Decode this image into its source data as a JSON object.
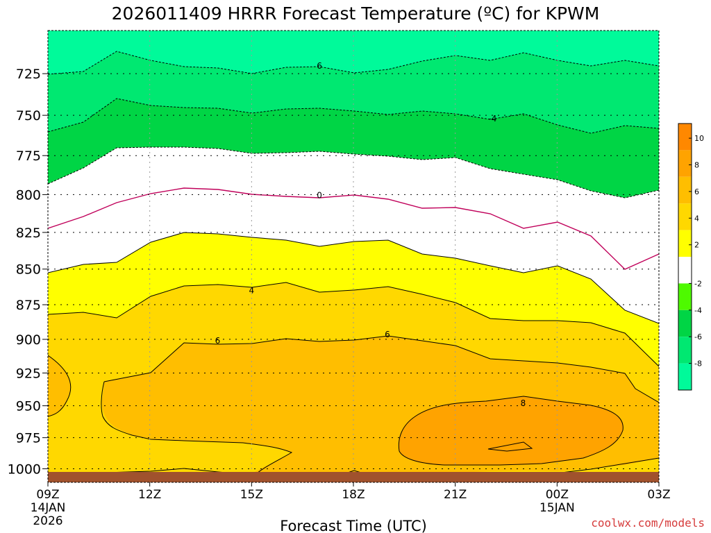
{
  "chart_data": {
    "type": "contour",
    "title": "2026011409 HRRR Forecast Temperature (ºC) for KPWM",
    "xlabel": "Forecast Time (UTC)",
    "credit": "coolwx.com/models",
    "x_ticks": [
      {
        "hour": 0,
        "label": "09Z",
        "sub1": "14JAN",
        "sub2": "2026"
      },
      {
        "hour": 3,
        "label": "12Z"
      },
      {
        "hour": 6,
        "label": "15Z"
      },
      {
        "hour": 9,
        "label": "18Z"
      },
      {
        "hour": 12,
        "label": "21Z"
      },
      {
        "hour": 15,
        "label": "00Z",
        "sub1": "15JAN"
      },
      {
        "hour": 18,
        "label": "03Z"
      }
    ],
    "y_ticks": [
      {
        "value": 725,
        "label": "725"
      },
      {
        "value": 750,
        "label": "750"
      },
      {
        "value": 775,
        "label": "775"
      },
      {
        "value": 800,
        "label": "800"
      },
      {
        "value": 825,
        "label": "825"
      },
      {
        "value": 850,
        "label": "850"
      },
      {
        "value": 875,
        "label": "875"
      },
      {
        "value": 900,
        "label": "900"
      },
      {
        "value": 925,
        "label": "925"
      },
      {
        "value": 950,
        "label": "950"
      },
      {
        "value": 975,
        "label": "975"
      },
      {
        "value": 1000,
        "label": "1000"
      }
    ],
    "xlim": [
      0,
      18
    ],
    "ylim_hpa": [
      700,
      1000
    ],
    "levels": [
      {
        "name": "-8",
        "color": "#00fa9a",
        "dashed": true
      },
      {
        "name": "-6",
        "color": "#00e871",
        "dashed": true
      },
      {
        "name": "-4",
        "color": "#00d545",
        "dashed": true
      },
      {
        "name": "-2",
        "color": "#4efa00",
        "dashed": true
      },
      {
        "name": "0",
        "color": "#ffffff",
        "line": "#c0005a"
      },
      {
        "name": "2",
        "color": "#ffff00"
      },
      {
        "name": "4",
        "color": "#ffd800"
      },
      {
        "name": "6",
        "color": "#ffbe00"
      },
      {
        "name": "8",
        "color": "#ffa300"
      },
      {
        "name": "10",
        "color": "#ff8800"
      }
    ],
    "colorbar_labels": [
      "10",
      "8",
      "6",
      "4",
      "2",
      "-2",
      "-4",
      "-6",
      "-8"
    ],
    "contour_labels": [
      {
        "text": "6",
        "hour": 8.0,
        "p": 720.5
      },
      {
        "text": "-4",
        "hour": 13.1,
        "p": 752
      },
      {
        "text": "0",
        "hour": 8.0,
        "p": 800.5
      },
      {
        "text": "4",
        "hour": 6.0,
        "p": 865
      },
      {
        "text": "6",
        "hour": 10.0,
        "p": 896.5
      },
      {
        "text": "6",
        "hour": 5.0,
        "p": 901
      },
      {
        "text": "8",
        "hour": 14.0,
        "p": 948
      }
    ],
    "colors": {
      "ground": "#a0522d",
      "frame": "#000000",
      "grid": "#999999",
      "credit": "#d63b3b"
    }
  }
}
